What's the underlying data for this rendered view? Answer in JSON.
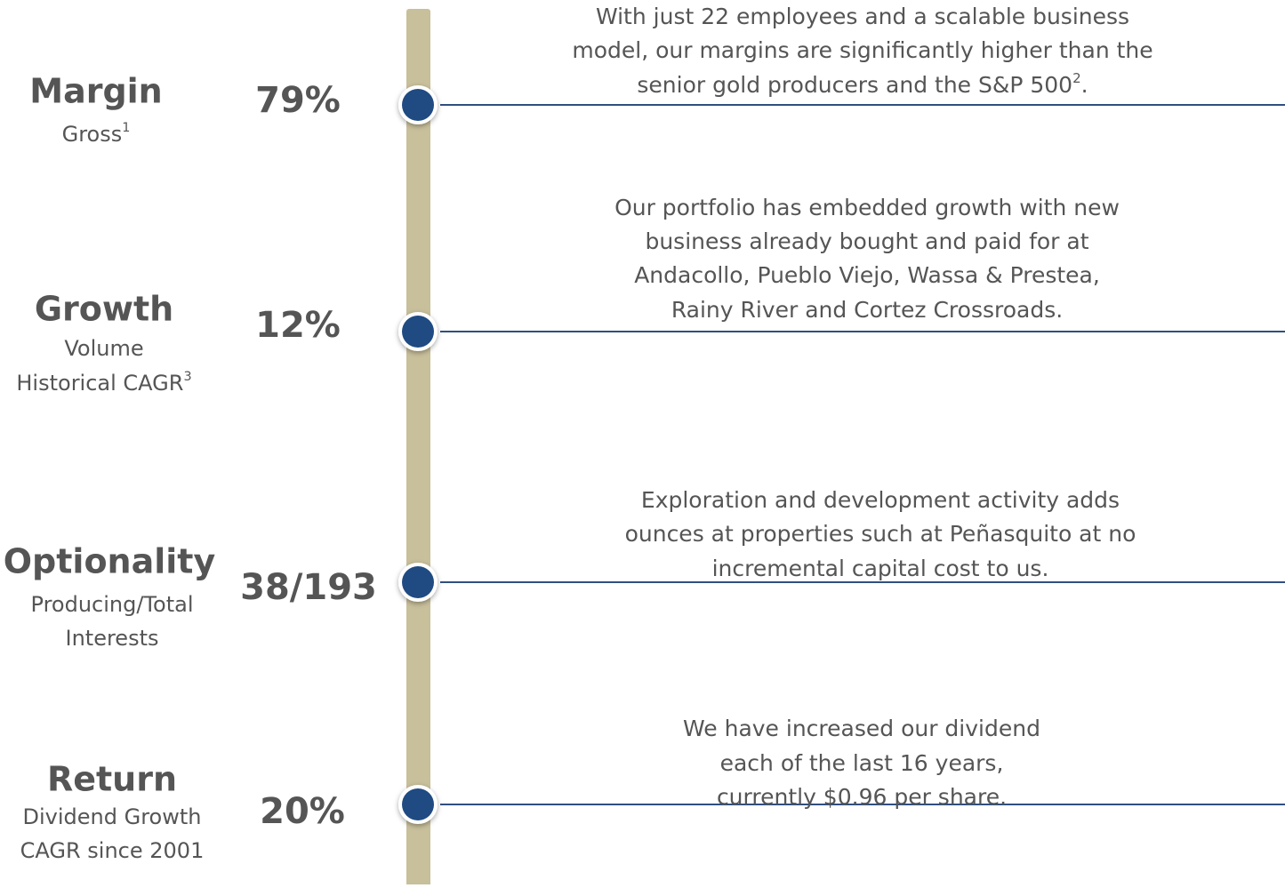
{
  "items": [
    {
      "title": "Margin",
      "subtitle": [
        {
          "text": "Gross",
          "sup": "1"
        }
      ],
      "value": "79%",
      "description": [
        "With just 22 employees and a scalable business",
        "model, our margins are significantly higher than the",
        {
          "text": "senior gold producers and the S&P 500",
          "sup": "2",
          "tail": "."
        }
      ]
    },
    {
      "title": "Growth",
      "subtitle": [
        "Volume",
        {
          "text": "Historical CAGR",
          "sup": "3"
        }
      ],
      "value": "12%",
      "description": [
        "Our portfolio has embedded growth with new",
        "business already bought and paid for at",
        "Andacollo, Pueblo Viejo, Wassa & Prestea,",
        "Rainy River and Cortez Crossroads."
      ]
    },
    {
      "title": "Optionality",
      "subtitle": [
        "Producing/Total",
        "Interests"
      ],
      "value": "38/193",
      "description": [
        "Exploration and development activity adds",
        "ounces at properties such at Peñasquito at no",
        "incremental capital cost to us."
      ]
    },
    {
      "title": "Return",
      "subtitle": [
        "Dividend Growth",
        "CAGR since 2001"
      ],
      "value": "20%",
      "description": [
        "We have increased our dividend",
        "each of the last 16 years,",
        "currently $0.96 per share."
      ]
    }
  ]
}
